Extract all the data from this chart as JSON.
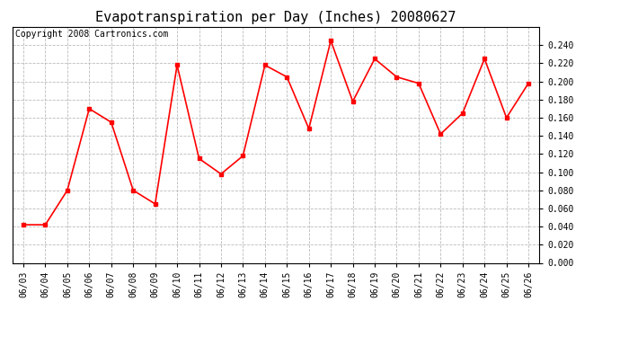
{
  "title": "Evapotranspiration per Day (Inches) 20080627",
  "copyright_text": "Copyright 2008 Cartronics.com",
  "dates": [
    "06/03",
    "06/04",
    "06/05",
    "06/06",
    "06/07",
    "06/08",
    "06/09",
    "06/10",
    "06/11",
    "06/12",
    "06/13",
    "06/14",
    "06/15",
    "06/16",
    "06/17",
    "06/18",
    "06/19",
    "06/20",
    "06/21",
    "06/22",
    "06/23",
    "06/24",
    "06/25",
    "06/26"
  ],
  "values": [
    0.042,
    0.042,
    0.08,
    0.17,
    0.155,
    0.08,
    0.065,
    0.218,
    0.115,
    0.098,
    0.118,
    0.218,
    0.205,
    0.148,
    0.245,
    0.178,
    0.225,
    0.205,
    0.198,
    0.142,
    0.165,
    0.225,
    0.16,
    0.198
  ],
  "ylim": [
    0.0,
    0.2601
  ],
  "yticks": [
    0.0,
    0.02,
    0.04,
    0.06,
    0.08,
    0.1,
    0.12,
    0.14,
    0.16,
    0.18,
    0.2,
    0.22,
    0.24
  ],
  "line_color": "red",
  "marker": "s",
  "marker_size": 3,
  "background_color": "#ffffff",
  "plot_bg_color": "#ffffff",
  "grid_color": "#bbbbbb",
  "title_fontsize": 11,
  "tick_fontsize": 7,
  "copyright_fontsize": 7
}
